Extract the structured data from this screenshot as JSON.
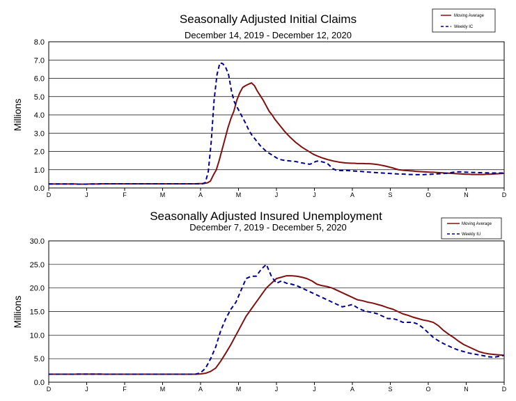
{
  "chart_data": [
    {
      "type": "line",
      "title": "Seasonally Adjusted Initial Claims",
      "subtitle": "December 14, 2019 - December 12, 2020",
      "ylabel": "Millions",
      "ylim": [
        0,
        8
      ],
      "yticks": [
        "0.0",
        "1.0",
        "2.0",
        "3.0",
        "4.0",
        "5.0",
        "6.0",
        "7.0",
        "8.0"
      ],
      "xticks": [
        "D",
        "J",
        "F",
        "M",
        "A",
        "M",
        "J",
        "J",
        "A",
        "S",
        "O",
        "N",
        "D"
      ],
      "grid": "horizontal",
      "legend_position": "top-right",
      "series": [
        {
          "name": "Moving Average",
          "color": "#7f1010",
          "style": "solid",
          "values": [
            0.22,
            0.22,
            0.22,
            0.22,
            0.22,
            0.22,
            0.22,
            0.22,
            0.22,
            0.22,
            0.21,
            0.21,
            0.21,
            0.21,
            0.22,
            0.22,
            0.22,
            0.22,
            0.23,
            0.23,
            0.23,
            0.23,
            0.23,
            0.23,
            0.23,
            0.23,
            0.23,
            0.23,
            0.23,
            0.23,
            0.23,
            0.23,
            0.23,
            0.23,
            0.23,
            0.23,
            0.23,
            0.23,
            0.23,
            0.23,
            0.23,
            0.23,
            0.23,
            0.23,
            0.23,
            0.23,
            0.23,
            0.23,
            0.23,
            0.23,
            0.23,
            0.24,
            0.24,
            0.25,
            0.28,
            0.37,
            0.7,
            0.98,
            1.5,
            2.1,
            2.7,
            3.3,
            3.8,
            4.2,
            4.8,
            5.2,
            5.5,
            5.6,
            5.68,
            5.75,
            5.6,
            5.3,
            5.05,
            4.8,
            4.5,
            4.2,
            4.0,
            3.75,
            3.55,
            3.35,
            3.15,
            2.97,
            2.8,
            2.65,
            2.5,
            2.38,
            2.25,
            2.15,
            2.05,
            1.95,
            1.85,
            1.78,
            1.71,
            1.65,
            1.6,
            1.55,
            1.51,
            1.47,
            1.44,
            1.41,
            1.39,
            1.37,
            1.36,
            1.35,
            1.35,
            1.34,
            1.34,
            1.34,
            1.33,
            1.33,
            1.32,
            1.3,
            1.28,
            1.25,
            1.22,
            1.18,
            1.14,
            1.1,
            1.05,
            1.0,
            0.98,
            0.96,
            0.95,
            0.94,
            0.93,
            0.91,
            0.9,
            0.89,
            0.88,
            0.87,
            0.86,
            0.86,
            0.85,
            0.84,
            0.83,
            0.82,
            0.81,
            0.8,
            0.79,
            0.78,
            0.77,
            0.76,
            0.75,
            0.75,
            0.74,
            0.74,
            0.74,
            0.74,
            0.74,
            0.75,
            0.75,
            0.76,
            0.77,
            0.78,
            0.79,
            0.8
          ]
        },
        {
          "name": "Weekly IC",
          "color": "#00008b",
          "style": "dashed",
          "values": [
            0.22,
            0.22,
            0.22,
            0.22,
            0.22,
            0.22,
            0.22,
            0.22,
            0.22,
            0.22,
            0.21,
            0.21,
            0.21,
            0.21,
            0.22,
            0.22,
            0.22,
            0.22,
            0.23,
            0.23,
            0.23,
            0.23,
            0.23,
            0.23,
            0.23,
            0.23,
            0.23,
            0.23,
            0.23,
            0.23,
            0.23,
            0.23,
            0.23,
            0.23,
            0.23,
            0.23,
            0.23,
            0.23,
            0.23,
            0.23,
            0.23,
            0.23,
            0.23,
            0.23,
            0.23,
            0.23,
            0.23,
            0.23,
            0.23,
            0.23,
            0.23,
            0.23,
            0.23,
            0.23,
            0.3,
            0.9,
            2.5,
            4.8,
            6.2,
            6.85,
            6.8,
            6.6,
            6.2,
            5.3,
            4.7,
            4.4,
            4.1,
            3.8,
            3.5,
            3.15,
            2.9,
            2.7,
            2.5,
            2.3,
            2.15,
            2.0,
            1.9,
            1.8,
            1.7,
            1.6,
            1.55,
            1.52,
            1.5,
            1.48,
            1.47,
            1.45,
            1.42,
            1.38,
            1.35,
            1.32,
            1.3,
            1.35,
            1.45,
            1.48,
            1.44,
            1.4,
            1.35,
            1.2,
            1.05,
            0.98,
            0.96,
            0.95,
            0.95,
            0.95,
            0.94,
            0.93,
            0.92,
            0.91,
            0.9,
            0.88,
            0.87,
            0.86,
            0.85,
            0.84,
            0.83,
            0.82,
            0.81,
            0.8,
            0.79,
            0.78,
            0.77,
            0.76,
            0.76,
            0.75,
            0.74,
            0.74,
            0.73,
            0.73,
            0.73,
            0.73,
            0.74,
            0.74,
            0.75,
            0.76,
            0.77,
            0.78,
            0.79,
            0.8,
            0.82,
            0.85,
            0.87,
            0.88,
            0.88,
            0.87,
            0.86,
            0.86,
            0.85,
            0.85,
            0.84,
            0.84,
            0.83,
            0.83,
            0.82,
            0.82,
            0.82,
            0.82,
            0.82,
            0.82
          ]
        }
      ]
    },
    {
      "type": "line",
      "title": "Seasonally Adjusted Insured Unemployment",
      "subtitle": "December 7, 2019 - December 5, 2020",
      "ylabel": "Millions",
      "ylim": [
        0,
        30
      ],
      "yticks": [
        "0.0",
        "5.0",
        "10.0",
        "15.0",
        "20.0",
        "25.0",
        "30.0"
      ],
      "xticks": [
        "D",
        "J",
        "F",
        "M",
        "A",
        "M",
        "J",
        "J",
        "A",
        "S",
        "O",
        "N",
        "D"
      ],
      "grid": "horizontal",
      "legend_position": "top-right",
      "series": [
        {
          "name": "Moving Average",
          "color": "#7f1010",
          "style": "solid",
          "values": [
            1.7,
            1.7,
            1.7,
            1.7,
            1.7,
            1.7,
            1.72,
            1.72,
            1.72,
            1.72,
            1.72,
            1.7,
            1.7,
            1.7,
            1.7,
            1.7,
            1.7,
            1.7,
            1.7,
            1.7,
            1.7,
            1.7,
            1.7,
            1.7,
            1.7,
            1.7,
            1.7,
            1.7,
            1.7,
            1.7,
            1.75,
            1.9,
            2.3,
            3.0,
            4.5,
            6.2,
            8.0,
            10.0,
            12.0,
            14.0,
            15.5,
            17.0,
            18.5,
            20.0,
            21.0,
            22.0,
            22.3,
            22.6,
            22.6,
            22.5,
            22.3,
            22.0,
            21.5,
            20.8,
            20.5,
            20.3,
            20.0,
            19.5,
            19.0,
            18.5,
            18.0,
            17.5,
            17.3,
            17.0,
            16.8,
            16.5,
            16.2,
            15.8,
            15.5,
            15.0,
            14.5,
            14.2,
            13.8,
            13.5,
            13.2,
            13.0,
            12.7,
            12.0,
            11.0,
            10.2,
            9.5,
            8.7,
            8.0,
            7.5,
            7.0,
            6.5,
            6.2,
            6.0,
            5.9,
            5.8,
            5.7
          ]
        },
        {
          "name": "Weekly IU",
          "color": "#00008b",
          "style": "dashed",
          "values": [
            1.7,
            1.7,
            1.7,
            1.7,
            1.7,
            1.7,
            1.72,
            1.72,
            1.72,
            1.72,
            1.72,
            1.7,
            1.7,
            1.7,
            1.7,
            1.7,
            1.7,
            1.7,
            1.7,
            1.7,
            1.7,
            1.7,
            1.7,
            1.7,
            1.7,
            1.7,
            1.7,
            1.7,
            1.7,
            1.7,
            2.0,
            3.0,
            5.0,
            7.5,
            11.0,
            13.5,
            15.5,
            17.0,
            19.5,
            22.0,
            22.5,
            22.5,
            24.0,
            25.0,
            22.5,
            21.0,
            21.5,
            21.0,
            20.8,
            20.5,
            20.0,
            19.5,
            19.0,
            18.5,
            18.0,
            17.5,
            17.0,
            16.5,
            16.0,
            16.2,
            16.5,
            15.8,
            15.3,
            15.0,
            14.8,
            14.5,
            14.0,
            13.5,
            13.5,
            13.2,
            12.7,
            12.7,
            12.7,
            12.3,
            11.5,
            10.5,
            9.5,
            8.8,
            8.2,
            7.7,
            7.2,
            6.8,
            6.5,
            6.2,
            6.0,
            5.8,
            5.6,
            5.4,
            5.3,
            5.5,
            5.7
          ]
        }
      ]
    }
  ]
}
